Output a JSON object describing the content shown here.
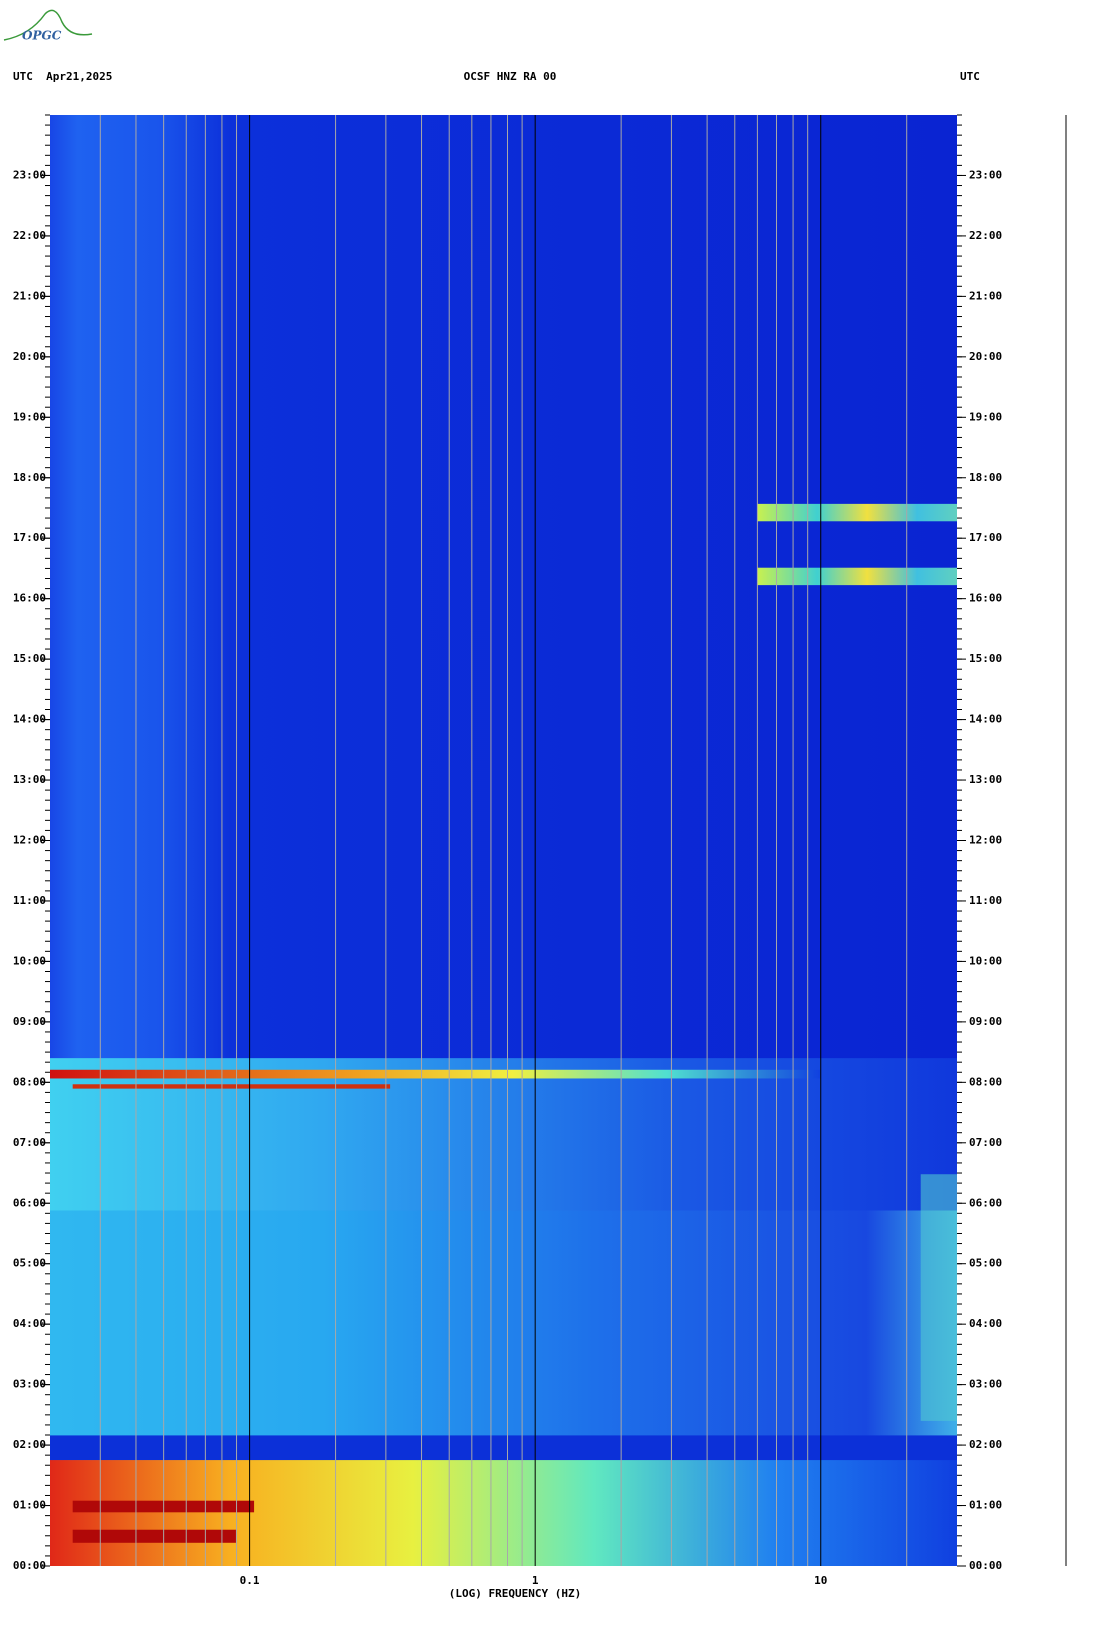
{
  "logo": "OPGC",
  "chart_data": {
    "type": "spectrogram",
    "title": "OCSF HNZ RA 00",
    "date_label": "UTC  Apr21,2025",
    "right_label": "UTC",
    "xlabel": "(LOG) FREQUENCY (HZ)",
    "xscale": "log",
    "xlim": [
      0.02,
      30
    ],
    "xticks": [
      0.1,
      1,
      10
    ],
    "xminorticks": [
      0.03,
      0.04,
      0.05,
      0.06,
      0.07,
      0.08,
      0.09,
      0.2,
      0.3,
      0.4,
      0.5,
      0.6,
      0.7,
      0.8,
      0.9,
      2,
      3,
      4,
      5,
      6,
      7,
      8,
      9,
      20
    ],
    "ylim": [
      0,
      24
    ],
    "yticks": [
      {
        "value": 0,
        "label": "00:00"
      },
      {
        "value": 1,
        "label": "01:00"
      },
      {
        "value": 2,
        "label": "02:00"
      },
      {
        "value": 3,
        "label": "03:00"
      },
      {
        "value": 4,
        "label": "04:00"
      },
      {
        "value": 5,
        "label": "05:00"
      },
      {
        "value": 6,
        "label": "06:00"
      },
      {
        "value": 7,
        "label": "07:00"
      },
      {
        "value": 8,
        "label": "08:00"
      },
      {
        "value": 9,
        "label": "09:00"
      },
      {
        "value": 10,
        "label": "10:00"
      },
      {
        "value": 11,
        "label": "11:00"
      },
      {
        "value": 12,
        "label": "12:00"
      },
      {
        "value": 13,
        "label": "13:00"
      },
      {
        "value": 14,
        "label": "14:00"
      },
      {
        "value": 15,
        "label": "15:00"
      },
      {
        "value": 16,
        "label": "16:00"
      },
      {
        "value": 17,
        "label": "17:00"
      },
      {
        "value": 18,
        "label": "18:00"
      },
      {
        "value": 19,
        "label": "19:00"
      },
      {
        "value": 20,
        "label": "20:00"
      },
      {
        "value": 21,
        "label": "21:00"
      },
      {
        "value": 22,
        "label": "22:00"
      },
      {
        "value": 23,
        "label": "23:00"
      }
    ],
    "grid": true
  }
}
